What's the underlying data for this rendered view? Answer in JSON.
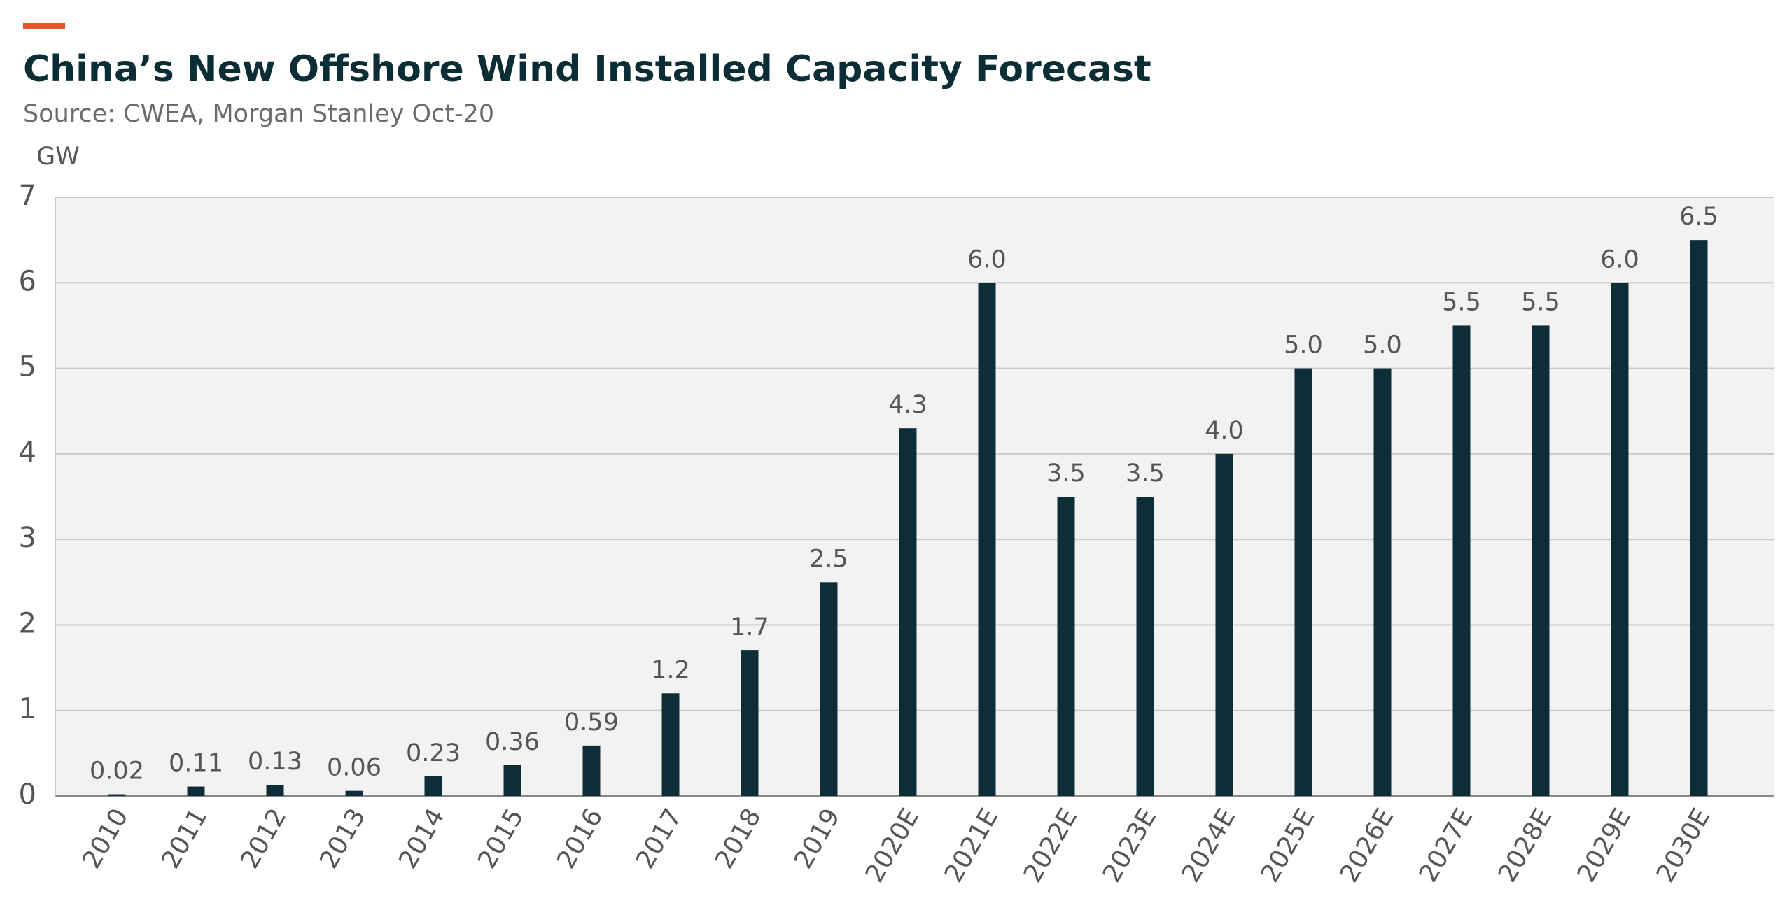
{
  "chart_data": {
    "type": "bar",
    "title": "China’s New Offshore Wind Installed Capacity Forecast",
    "subtitle": "Source: CWEA, Morgan Stanley Oct-20",
    "y_label": "GW",
    "categories": [
      "2010",
      "2011",
      "2012",
      "2013",
      "2014",
      "2015",
      "2016",
      "2017",
      "2018",
      "2019",
      "2020E",
      "2021E",
      "2022E",
      "2023E",
      "2024E",
      "2025E",
      "2026E",
      "2027E",
      "2028E",
      "2029E",
      "2030E"
    ],
    "values": [
      0.02,
      0.11,
      0.13,
      0.06,
      0.23,
      0.36,
      0.59,
      1.2,
      1.7,
      2.5,
      4.3,
      6.0,
      3.5,
      3.5,
      4.0,
      5.0,
      5.0,
      5.5,
      5.5,
      6.0,
      6.5
    ],
    "value_labels": [
      "0.02",
      "0.11",
      "0.13",
      "0.06",
      "0.23",
      "0.36",
      "0.59",
      "1.2",
      "1.7",
      "2.5",
      "4.3",
      "6.0",
      "3.5",
      "3.5",
      "4.0",
      "5.0",
      "5.0",
      "5.5",
      "5.5",
      "6.0",
      "6.5"
    ],
    "color": "#0d2e36",
    "ylim": [
      0,
      7
    ],
    "yticks": [
      0,
      1,
      2,
      3,
      4,
      5,
      6,
      7
    ],
    "grid": true
  }
}
